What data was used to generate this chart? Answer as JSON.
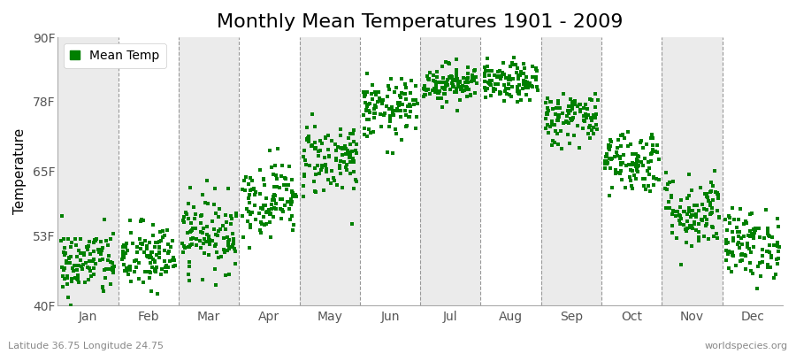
{
  "title": "Monthly Mean Temperatures 1901 - 2009",
  "ylabel": "Temperature",
  "ylim": [
    40,
    90
  ],
  "yticks": [
    40,
    53,
    65,
    78,
    90
  ],
  "ytick_labels": [
    "40F",
    "53F",
    "65F",
    "78F",
    "90F"
  ],
  "months": [
    "Jan",
    "Feb",
    "Mar",
    "Apr",
    "May",
    "Jun",
    "Jul",
    "Aug",
    "Sep",
    "Oct",
    "Nov",
    "Dec"
  ],
  "monthly_mean": [
    48.0,
    49.0,
    53.5,
    60.0,
    67.5,
    76.5,
    81.5,
    81.5,
    75.0,
    67.0,
    57.5,
    51.5
  ],
  "monthly_std": [
    3.2,
    3.2,
    3.5,
    3.5,
    3.5,
    2.8,
    1.8,
    1.8,
    2.5,
    3.0,
    3.5,
    3.2
  ],
  "n_years": 109,
  "dot_color": "#008000",
  "dot_size": 7,
  "figure_bg": "#ffffff",
  "plot_bg_white": "#ffffff",
  "plot_bg_gray": "#ebebeb",
  "title_fontsize": 16,
  "axis_label_fontsize": 11,
  "tick_fontsize": 10,
  "legend_label": "Mean Temp",
  "bottom_left": "Latitude 36.75 Longitude 24.75",
  "bottom_right": "worldspecies.org",
  "dashed_color": "#999999",
  "spine_color": "#aaaaaa"
}
